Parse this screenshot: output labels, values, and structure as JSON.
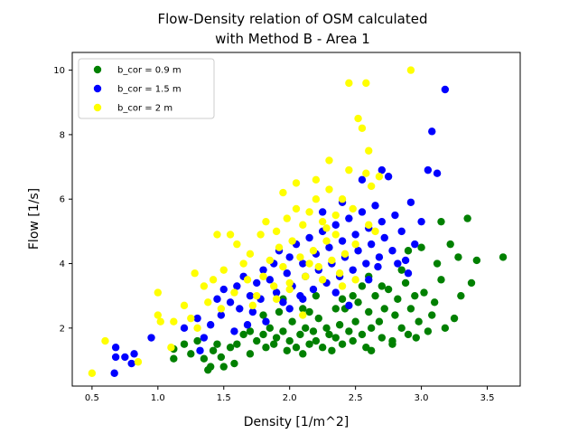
{
  "chart_data": {
    "type": "scatter",
    "title": [
      "Flow-Density relation of OSM calculated",
      "with Method B - Area 1"
    ],
    "xlabel": "Density [1/m^2]",
    "ylabel": "Flow [1/s]",
    "xlim": [
      0.35,
      3.75
    ],
    "ylim": [
      0.2,
      10.55
    ],
    "xticks": [
      0.5,
      1.0,
      1.5,
      2.0,
      2.5,
      3.0,
      3.5
    ],
    "xtick_labels": [
      "0.5",
      "1.0",
      "1.5",
      "2.0",
      "2.5",
      "3.0",
      "3.5"
    ],
    "yticks": [
      2,
      4,
      6,
      8,
      10
    ],
    "ytick_labels": [
      "2",
      "4",
      "6",
      "8",
      "10"
    ],
    "grid": false,
    "legend_position": "top-left",
    "series": [
      {
        "name": "b_cor = 0.9 m",
        "color": "#008000",
        "points": [
          [
            1.12,
            1.05
          ],
          [
            1.12,
            1.35
          ],
          [
            1.2,
            1.5
          ],
          [
            1.25,
            1.2
          ],
          [
            1.3,
            1.6
          ],
          [
            1.35,
            1.05
          ],
          [
            1.38,
            0.7
          ],
          [
            1.4,
            0.8
          ],
          [
            1.42,
            1.3
          ],
          [
            1.45,
            1.5
          ],
          [
            1.48,
            1.1
          ],
          [
            1.5,
            0.8
          ],
          [
            1.55,
            1.4
          ],
          [
            1.58,
            0.9
          ],
          [
            1.6,
            1.5
          ],
          [
            1.65,
            1.8
          ],
          [
            1.7,
            1.2
          ],
          [
            1.75,
            1.6
          ],
          [
            1.8,
            1.8
          ],
          [
            1.82,
            1.4
          ],
          [
            1.85,
            2.0
          ],
          [
            1.88,
            1.5
          ],
          [
            1.9,
            1.7
          ],
          [
            1.92,
            2.5
          ],
          [
            1.95,
            1.9
          ],
          [
            1.98,
            1.3
          ],
          [
            2.0,
            1.6
          ],
          [
            2.02,
            2.2
          ],
          [
            2.05,
            1.4
          ],
          [
            2.08,
            1.8
          ],
          [
            2.1,
            1.2
          ],
          [
            2.12,
            2.0
          ],
          [
            2.15,
            1.5
          ],
          [
            2.18,
            1.9
          ],
          [
            2.2,
            1.6
          ],
          [
            2.22,
            2.3
          ],
          [
            2.25,
            1.4
          ],
          [
            2.28,
            2.0
          ],
          [
            2.3,
            1.8
          ],
          [
            2.32,
            1.3
          ],
          [
            2.35,
            1.7
          ],
          [
            2.38,
            2.1
          ],
          [
            2.4,
            1.5
          ],
          [
            2.42,
            2.6
          ],
          [
            2.45,
            1.9
          ],
          [
            2.48,
            1.6
          ],
          [
            2.5,
            2.2
          ],
          [
            2.52,
            2.8
          ],
          [
            2.55,
            1.8
          ],
          [
            2.58,
            1.4
          ],
          [
            2.6,
            2.5
          ],
          [
            2.62,
            2.0
          ],
          [
            2.65,
            3.0
          ],
          [
            2.68,
            2.2
          ],
          [
            2.7,
            1.7
          ],
          [
            2.72,
            2.6
          ],
          [
            2.75,
            3.2
          ],
          [
            2.78,
            1.5
          ],
          [
            2.8,
            2.4
          ],
          [
            2.82,
            2.9
          ],
          [
            2.85,
            2.0
          ],
          [
            2.88,
            3.4
          ],
          [
            2.9,
            1.8
          ],
          [
            2.92,
            2.6
          ],
          [
            2.95,
            3.0
          ],
          [
            2.98,
            2.2
          ],
          [
            3.0,
            4.5
          ],
          [
            3.02,
            3.1
          ],
          [
            3.05,
            1.9
          ],
          [
            3.08,
            2.4
          ],
          [
            3.1,
            2.8
          ],
          [
            3.12,
            4.0
          ],
          [
            3.15,
            3.5
          ],
          [
            3.18,
            2.0
          ],
          [
            3.22,
            4.6
          ],
          [
            3.25,
            2.3
          ],
          [
            3.28,
            4.2
          ],
          [
            3.3,
            3.0
          ],
          [
            3.35,
            5.4
          ],
          [
            3.38,
            3.4
          ],
          [
            3.42,
            4.1
          ],
          [
            3.62,
            4.2
          ],
          [
            3.15,
            5.3
          ],
          [
            2.9,
            4.4
          ],
          [
            2.55,
            3.3
          ],
          [
            2.4,
            2.9
          ],
          [
            2.2,
            3.0
          ],
          [
            2.1,
            2.6
          ],
          [
            1.95,
            2.9
          ],
          [
            1.8,
            2.4
          ],
          [
            2.6,
            3.6
          ],
          [
            2.7,
            3.3
          ],
          [
            2.85,
            3.8
          ],
          [
            2.35,
            2.6
          ],
          [
            2.48,
            3.0
          ],
          [
            2.15,
            2.5
          ],
          [
            1.7,
            1.9
          ],
          [
            2.62,
            1.3
          ],
          [
            2.78,
            1.6
          ],
          [
            2.96,
            1.7
          ]
        ]
      },
      {
        "name": "b_cor = 1.5 m",
        "color": "#0000ff",
        "points": [
          [
            0.67,
            0.6
          ],
          [
            0.68,
            1.1
          ],
          [
            0.68,
            1.4
          ],
          [
            0.75,
            1.1
          ],
          [
            0.8,
            0.9
          ],
          [
            0.82,
            1.2
          ],
          [
            0.95,
            1.7
          ],
          [
            1.2,
            2.0
          ],
          [
            1.3,
            2.3
          ],
          [
            1.35,
            1.7
          ],
          [
            1.4,
            2.1
          ],
          [
            1.45,
            2.9
          ],
          [
            1.48,
            2.4
          ],
          [
            1.5,
            3.2
          ],
          [
            1.55,
            2.8
          ],
          [
            1.6,
            3.3
          ],
          [
            1.62,
            2.6
          ],
          [
            1.65,
            3.6
          ],
          [
            1.68,
            2.1
          ],
          [
            1.7,
            3.0
          ],
          [
            1.72,
            2.5
          ],
          [
            1.75,
            3.4
          ],
          [
            1.78,
            2.9
          ],
          [
            1.8,
            3.8
          ],
          [
            1.82,
            2.2
          ],
          [
            1.85,
            3.5
          ],
          [
            1.88,
            4.0
          ],
          [
            1.9,
            3.1
          ],
          [
            1.92,
            4.4
          ],
          [
            1.95,
            2.8
          ],
          [
            1.98,
            3.7
          ],
          [
            2.0,
            4.2
          ],
          [
            2.02,
            3.3
          ],
          [
            2.05,
            4.6
          ],
          [
            2.08,
            3.0
          ],
          [
            2.1,
            4.0
          ],
          [
            2.12,
            3.6
          ],
          [
            2.15,
            4.8
          ],
          [
            2.18,
            3.2
          ],
          [
            2.2,
            4.3
          ],
          [
            2.22,
            3.8
          ],
          [
            2.25,
            5.0
          ],
          [
            2.28,
            3.4
          ],
          [
            2.3,
            4.5
          ],
          [
            2.32,
            4.0
          ],
          [
            2.35,
            5.2
          ],
          [
            2.38,
            3.6
          ],
          [
            2.4,
            4.7
          ],
          [
            2.42,
            4.2
          ],
          [
            2.45,
            5.4
          ],
          [
            2.48,
            3.8
          ],
          [
            2.5,
            4.9
          ],
          [
            2.52,
            4.4
          ],
          [
            2.55,
            5.6
          ],
          [
            2.58,
            4.0
          ],
          [
            2.6,
            5.1
          ],
          [
            2.62,
            4.6
          ],
          [
            2.65,
            5.8
          ],
          [
            2.68,
            4.2
          ],
          [
            2.7,
            5.3
          ],
          [
            2.72,
            4.8
          ],
          [
            2.75,
            6.7
          ],
          [
            2.78,
            4.4
          ],
          [
            2.8,
            5.5
          ],
          [
            2.85,
            5.0
          ],
          [
            2.88,
            4.1
          ],
          [
            2.92,
            5.9
          ],
          [
            2.95,
            4.6
          ],
          [
            3.0,
            5.3
          ],
          [
            3.05,
            6.9
          ],
          [
            3.08,
            8.1
          ],
          [
            3.12,
            6.8
          ],
          [
            3.18,
            9.4
          ],
          [
            2.7,
            6.9
          ],
          [
            2.55,
            6.6
          ],
          [
            2.4,
            5.9
          ],
          [
            2.25,
            5.6
          ],
          [
            2.1,
            2.9
          ],
          [
            2.35,
            3.1
          ],
          [
            2.6,
            3.5
          ],
          [
            2.45,
            2.7
          ],
          [
            2.0,
            2.6
          ],
          [
            1.58,
            1.9
          ],
          [
            1.32,
            1.3
          ],
          [
            2.82,
            4.0
          ],
          [
            2.67,
            3.9
          ],
          [
            2.9,
            3.7
          ]
        ]
      },
      {
        "name": "b_cor = 2 m",
        "color": "#ffff00",
        "points": [
          [
            0.5,
            0.6
          ],
          [
            0.6,
            1.6
          ],
          [
            0.85,
            0.95
          ],
          [
            1.0,
            3.1
          ],
          [
            1.0,
            2.4
          ],
          [
            1.02,
            2.2
          ],
          [
            1.1,
            1.4
          ],
          [
            1.12,
            2.2
          ],
          [
            1.2,
            2.7
          ],
          [
            1.25,
            2.3
          ],
          [
            1.28,
            3.7
          ],
          [
            1.3,
            2.0
          ],
          [
            1.35,
            3.3
          ],
          [
            1.38,
            2.8
          ],
          [
            1.42,
            3.5
          ],
          [
            1.45,
            4.9
          ],
          [
            1.48,
            2.6
          ],
          [
            1.5,
            3.8
          ],
          [
            1.55,
            4.9
          ],
          [
            1.58,
            3.1
          ],
          [
            1.6,
            4.6
          ],
          [
            1.65,
            4.0
          ],
          [
            1.68,
            3.5
          ],
          [
            1.7,
            4.3
          ],
          [
            1.75,
            3.0
          ],
          [
            1.78,
            4.9
          ],
          [
            1.8,
            3.6
          ],
          [
            1.82,
            5.3
          ],
          [
            1.85,
            4.1
          ],
          [
            1.88,
            3.3
          ],
          [
            1.9,
            5.0
          ],
          [
            1.92,
            4.5
          ],
          [
            1.95,
            3.9
          ],
          [
            1.98,
            5.4
          ],
          [
            2.0,
            3.4
          ],
          [
            2.02,
            4.7
          ],
          [
            2.05,
            6.5
          ],
          [
            2.08,
            4.2
          ],
          [
            2.1,
            5.2
          ],
          [
            2.12,
            3.6
          ],
          [
            2.15,
            5.6
          ],
          [
            2.18,
            4.4
          ],
          [
            2.2,
            6.0
          ],
          [
            2.22,
            3.9
          ],
          [
            2.25,
            5.3
          ],
          [
            2.28,
            4.7
          ],
          [
            2.3,
            6.3
          ],
          [
            2.32,
            4.1
          ],
          [
            2.35,
            5.5
          ],
          [
            2.38,
            3.7
          ],
          [
            2.4,
            6.0
          ],
          [
            2.42,
            4.3
          ],
          [
            2.45,
            6.9
          ],
          [
            2.48,
            5.7
          ],
          [
            2.5,
            4.6
          ],
          [
            2.52,
            8.5
          ],
          [
            2.55,
            8.2
          ],
          [
            2.58,
            6.8
          ],
          [
            2.6,
            5.2
          ],
          [
            2.62,
            6.4
          ],
          [
            2.65,
            5.0
          ],
          [
            2.68,
            6.7
          ],
          [
            2.45,
            9.6
          ],
          [
            2.58,
            9.6
          ],
          [
            2.6,
            7.5
          ],
          [
            2.92,
            10.0
          ],
          [
            2.3,
            7.2
          ],
          [
            2.2,
            6.6
          ],
          [
            2.05,
            5.7
          ],
          [
            1.95,
            6.2
          ],
          [
            2.35,
            4.9
          ],
          [
            2.15,
            4.0
          ],
          [
            2.25,
            3.5
          ],
          [
            2.4,
            3.3
          ],
          [
            2.0,
            3.2
          ],
          [
            1.9,
            2.9
          ],
          [
            2.1,
            2.4
          ],
          [
            2.5,
            3.5
          ],
          [
            1.72,
            2.7
          ],
          [
            2.28,
            5.1
          ]
        ]
      }
    ]
  }
}
